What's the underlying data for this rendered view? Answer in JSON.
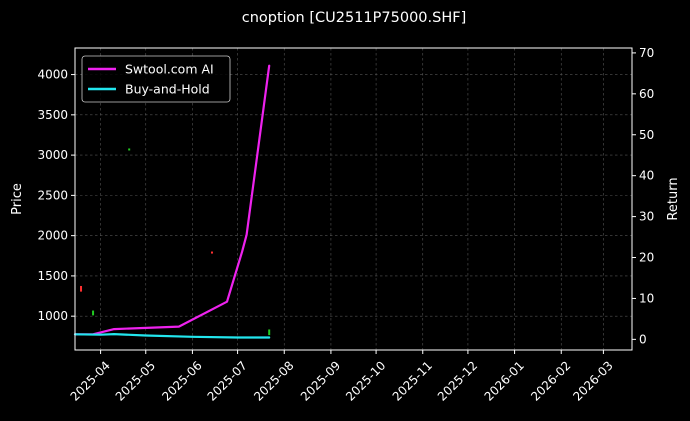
{
  "chart_data": {
    "type": "line",
    "title": "cnoption [CU2511P75000.SHF]",
    "xlabel": "",
    "ylabel_left": "Price",
    "ylabel_right": "Return",
    "x_tick_labels": [
      "2025-04",
      "2025-05",
      "2025-06",
      "2025-07",
      "2025-08",
      "2025-09",
      "2025-10",
      "2025-11",
      "2025-12",
      "2026-01",
      "2026-02",
      "2026-03"
    ],
    "y_left_ticks": [
      1000,
      1500,
      2000,
      2500,
      3000,
      3500,
      4000
    ],
    "y_right_ticks": [
      0,
      10,
      20,
      30,
      40,
      50,
      60,
      70
    ],
    "xlim": [
      "2025-03-15",
      "2026-03-20"
    ],
    "ylim_left": [
      580,
      4330
    ],
    "ylim_right": [
      -2.6,
      71.2
    ],
    "grid": true,
    "legend_position": "top-left",
    "series": [
      {
        "name": "Swtool.com AI",
        "axis": "left",
        "color": "#ee22ee",
        "points": [
          {
            "x": "2025-03-15",
            "y": 775
          },
          {
            "x": "2025-03-27",
            "y": 775
          },
          {
            "x": "2025-04-10",
            "y": 840
          },
          {
            "x": "2025-05-23",
            "y": 870
          },
          {
            "x": "2025-06-24",
            "y": 1180
          },
          {
            "x": "2025-07-04",
            "y": 1800
          },
          {
            "x": "2025-07-07",
            "y": 2010
          },
          {
            "x": "2025-07-22",
            "y": 4110
          }
        ]
      },
      {
        "name": "Buy-and-Hold",
        "axis": "left",
        "color": "#22e6ee",
        "points": [
          {
            "x": "2025-03-15",
            "y": 775
          },
          {
            "x": "2025-04-01",
            "y": 770
          },
          {
            "x": "2025-04-10",
            "y": 778
          },
          {
            "x": "2025-05-01",
            "y": 760
          },
          {
            "x": "2025-06-01",
            "y": 744
          },
          {
            "x": "2025-07-01",
            "y": 735
          },
          {
            "x": "2025-07-22",
            "y": 735
          }
        ]
      }
    ],
    "markers": [
      {
        "x": "2025-03-19",
        "y": 1340,
        "color": "#ff3030",
        "size": 70
      },
      {
        "x": "2025-03-27",
        "y": 1040,
        "color": "#22cc22",
        "size": 60
      },
      {
        "x": "2025-04-20",
        "y": 3070,
        "color": "#22cc22",
        "size": 25
      },
      {
        "x": "2025-06-14",
        "y": 1790,
        "color": "#ff3030",
        "size": 25
      },
      {
        "x": "2025-07-22",
        "y": 800,
        "color": "#22cc22",
        "size": 70
      }
    ]
  }
}
